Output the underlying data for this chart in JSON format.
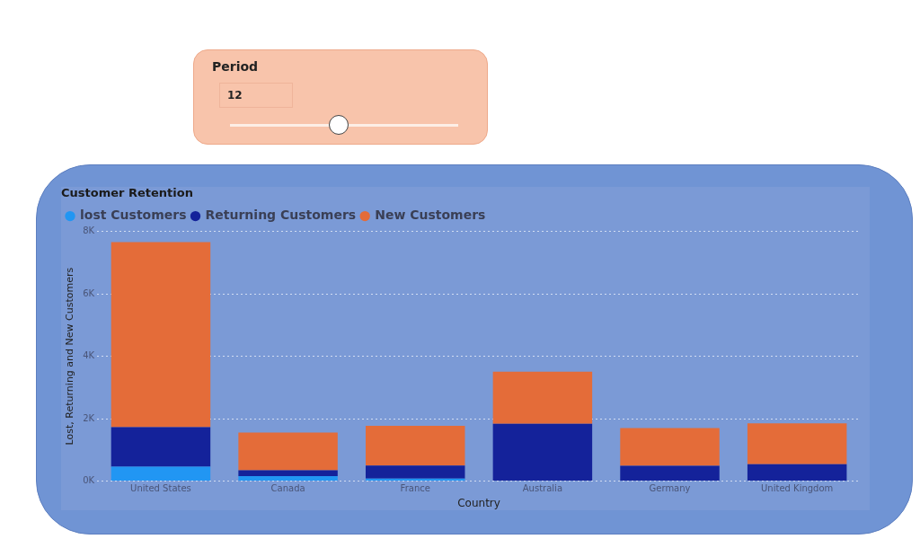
{
  "chart_data": {
    "type": "bar",
    "title": "Customer Retention",
    "xlabel": "Country",
    "ylabel": "Lost, Returning and New Customers",
    "categories": [
      "United States",
      "Canada",
      "France",
      "Australia",
      "Germany",
      "United Kingdom"
    ],
    "stacked": true,
    "series": [
      {
        "name": "lost Customers",
        "color": "#2196f3",
        "values": [
          460,
          160,
          80,
          null,
          null,
          null
        ]
      },
      {
        "name": "Returning Customers",
        "color": "#14229a",
        "values": [
          1270,
          190,
          420,
          1840,
          490,
          540
        ]
      },
      {
        "name": "New Customers",
        "color": "#e46c39",
        "values": [
          5930,
          1210,
          1270,
          1670,
          1210,
          1310
        ]
      }
    ],
    "ylim": [
      0,
      8000
    ],
    "yticks": [
      {
        "value": 0,
        "label": "0K"
      },
      {
        "value": 2000,
        "label": "2K"
      },
      {
        "value": 4000,
        "label": "4K"
      },
      {
        "value": 6000,
        "label": "6K"
      },
      {
        "value": 8000,
        "label": "8K"
      }
    ],
    "grid": "y",
    "legend": "top left",
    "annotations": [
      "Period",
      "12"
    ]
  }
}
